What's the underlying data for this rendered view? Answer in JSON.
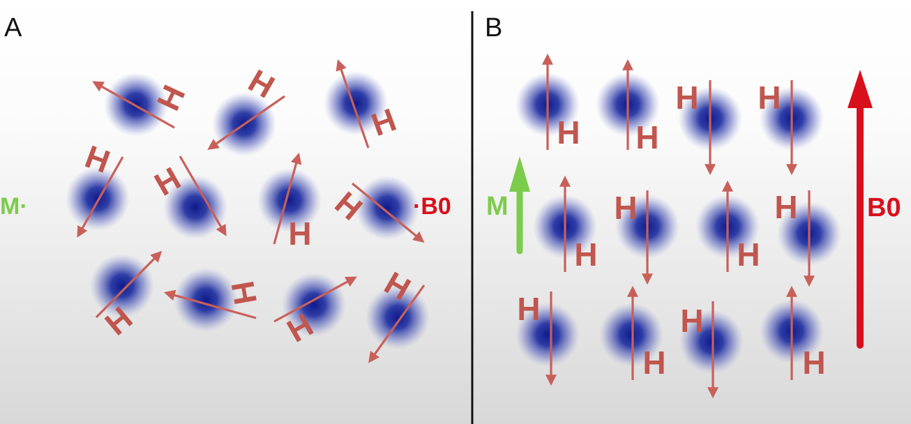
{
  "panels": [
    {
      "label": "A",
      "field_label": "·B0",
      "magnetization_label": "M·",
      "state": "random"
    },
    {
      "label": "B",
      "field_label": "B0",
      "magnetization_label": "M",
      "state": "aligned"
    }
  ],
  "atom_label": "H",
  "colors": {
    "background_top": "#ffffff",
    "background_bottom": "#dcdcdc",
    "nucleus": "#1c2a9c",
    "spin_arrow": "#c8605a",
    "atom_label": "#c0564e",
    "field": "#d8101c",
    "magnetization": "#7ccc4c",
    "divider": "#111111",
    "panel_label": "#111111"
  }
}
